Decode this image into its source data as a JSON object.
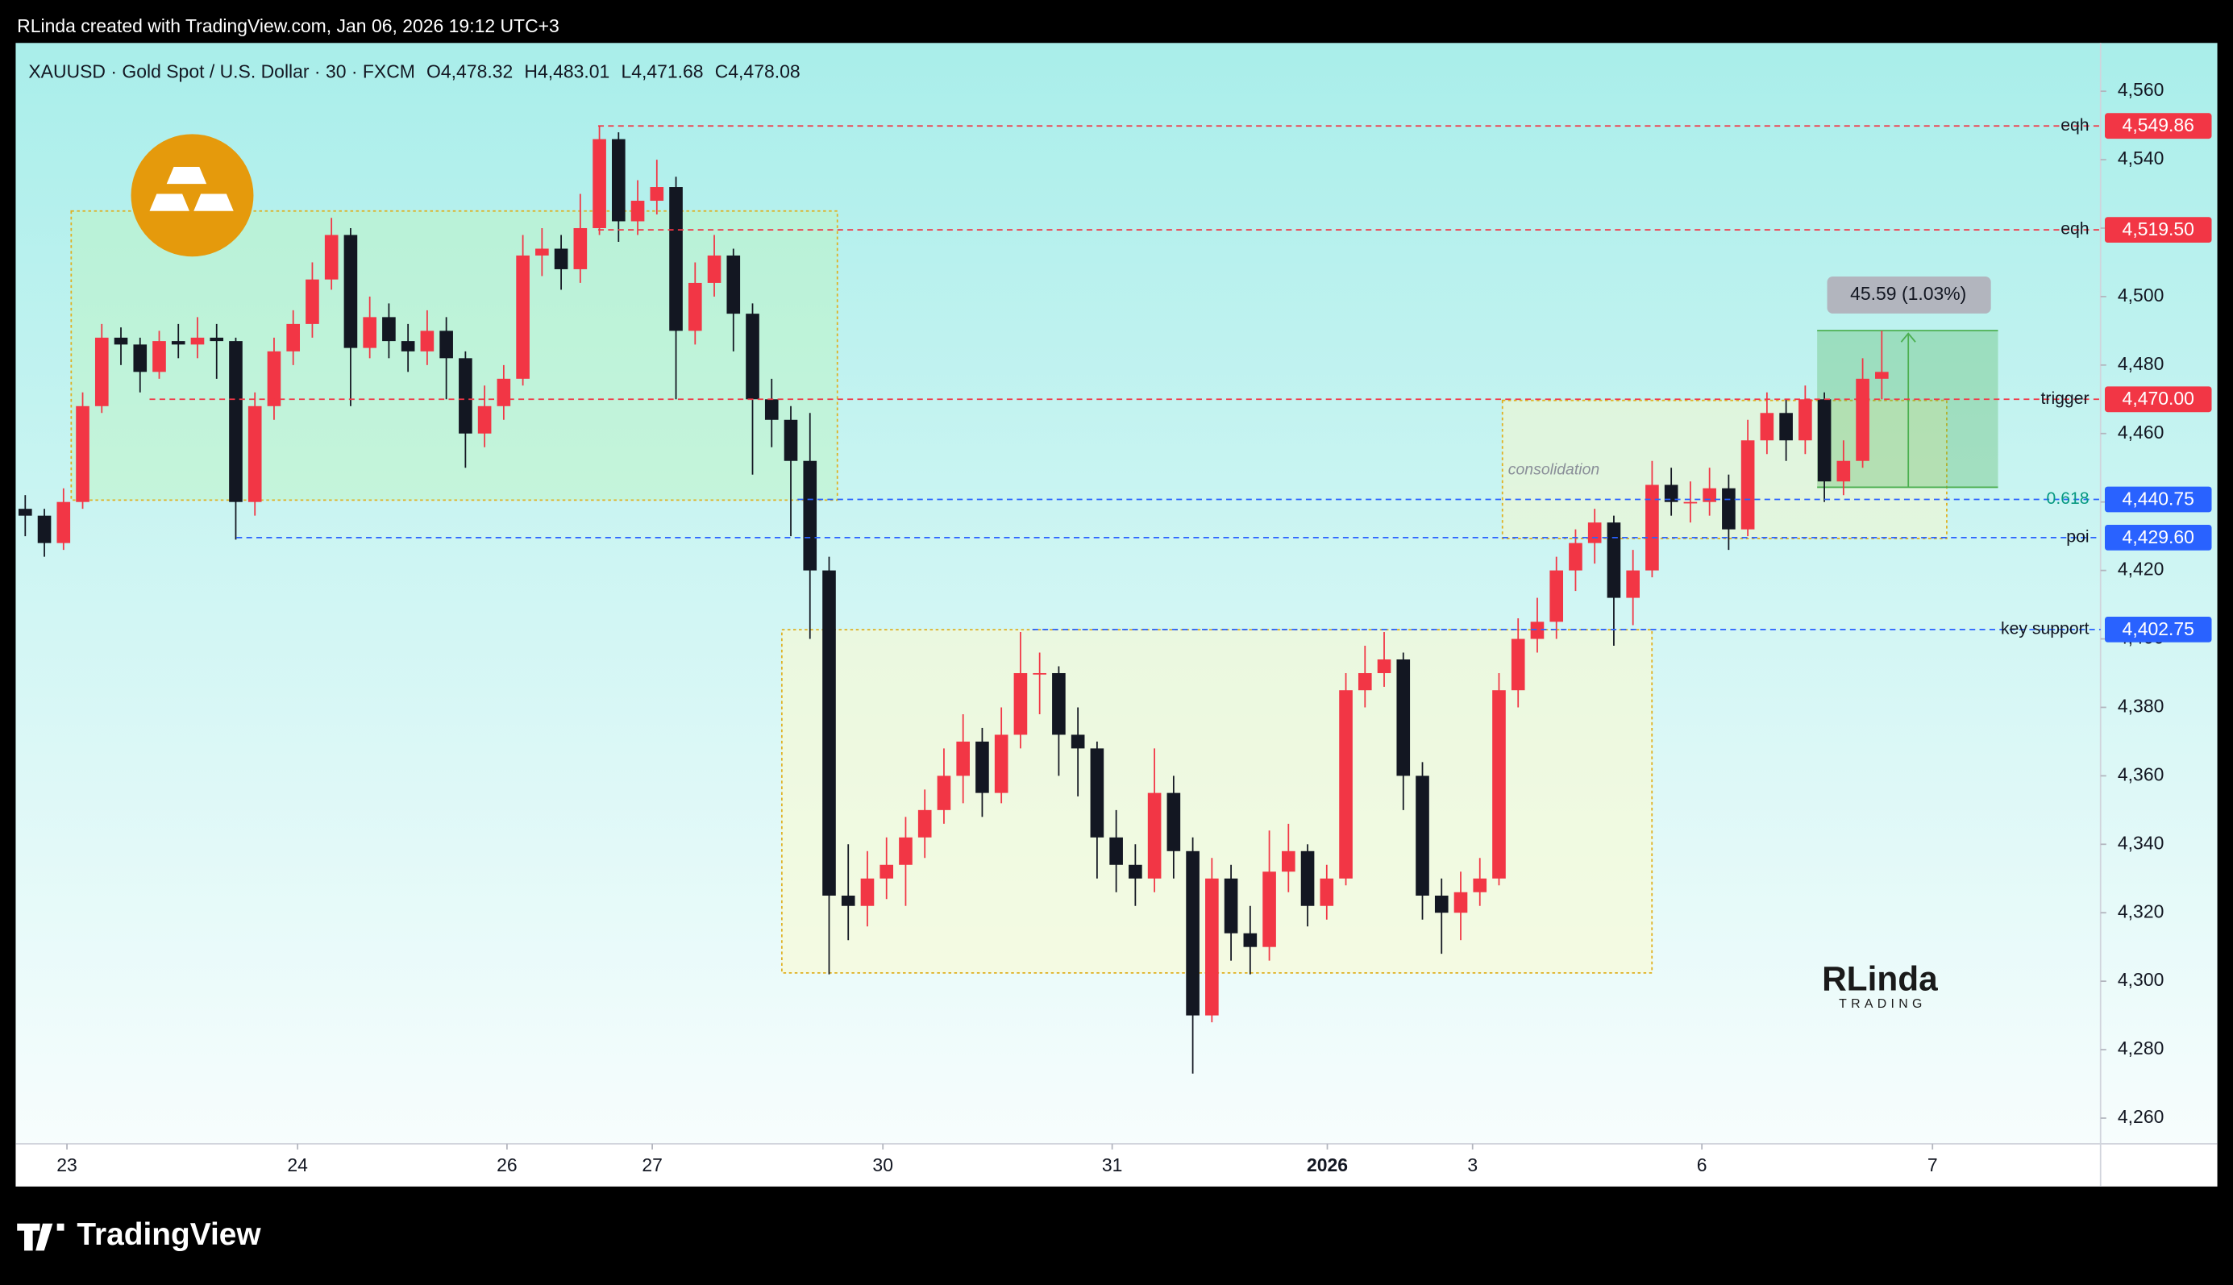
{
  "header": "RLinda created with TradingView.com, Jan 06, 2026 19:12 UTC+3",
  "footer": "TradingView",
  "watermark": {
    "name": "RLinda",
    "sub": "TRADING"
  },
  "chart_data": {
    "type": "candlestick",
    "title": "XAUUSD · Gold Spot / U.S. Dollar · 30 · FXCM",
    "legend_values": [
      "O4,478.32",
      "H4,483.01",
      "L4,471.68",
      "C4,478.08"
    ],
    "up_color": "#f23645",
    "down_color": "#131722",
    "grid": false,
    "open": [
      4438,
      4436,
      4428,
      4440,
      4468,
      4488,
      4486,
      4478,
      4487,
      4486,
      4488,
      4487,
      4440,
      4468,
      4484,
      4492,
      4505,
      4518,
      4485,
      4494,
      4487,
      4484,
      4490,
      4482,
      4460,
      4468,
      4476,
      4512,
      4514,
      4508,
      4520,
      4546,
      4522,
      4528,
      4532,
      4490,
      4504,
      4512,
      4495,
      4470,
      4464,
      4452,
      4420,
      4325,
      4322,
      4330,
      4334,
      4342,
      4350,
      4360,
      4370,
      4355,
      4372,
      4390,
      4390,
      4372,
      4368,
      4342,
      4334,
      4330,
      4355,
      4338,
      4290,
      4330,
      4314,
      4310,
      4332,
      4338,
      4322,
      4330,
      4385,
      4390,
      4394,
      4360,
      4325,
      4320,
      4326,
      4330,
      4385,
      4400,
      4405,
      4420,
      4428,
      4434,
      4412,
      4420,
      4445,
      4440,
      4440,
      4444,
      4432,
      4458,
      4466,
      4458,
      4470,
      4446,
      4452,
      4476
    ],
    "high": [
      4442,
      4438,
      4444,
      4472,
      4492,
      4491,
      4488,
      4490,
      4492,
      4494,
      4492,
      4488,
      4472,
      4488,
      4496,
      4510,
      4523,
      4520,
      4500,
      4498,
      4492,
      4496,
      4494,
      4484,
      4474,
      4480,
      4518,
      4520,
      4518,
      4530,
      4550,
      4548,
      4534,
      4540,
      4535,
      4510,
      4518,
      4514,
      4498,
      4476,
      4468,
      4466,
      4424,
      4340,
      4338,
      4342,
      4348,
      4356,
      4368,
      4378,
      4374,
      4380,
      4402,
      4396,
      4392,
      4380,
      4370,
      4350,
      4340,
      4368,
      4360,
      4342,
      4336,
      4334,
      4322,
      4344,
      4346,
      4340,
      4334,
      4390,
      4398,
      4402,
      4396,
      4364,
      4330,
      4332,
      4336,
      4390,
      4406,
      4412,
      4424,
      4432,
      4438,
      4436,
      4426,
      4452,
      4450,
      4446,
      4450,
      4448,
      4464,
      4472,
      4470,
      4474,
      4472,
      4458,
      4482,
      4490
    ],
    "low": [
      4430,
      4424,
      4426,
      4438,
      4466,
      4480,
      4472,
      4476,
      4482,
      4482,
      4476,
      4429,
      4436,
      4464,
      4480,
      4488,
      4502,
      4468,
      4482,
      4482,
      4478,
      4480,
      4470,
      4450,
      4456,
      4464,
      4474,
      4506,
      4502,
      4504,
      4518,
      4516,
      4518,
      4524,
      4470,
      4486,
      4500,
      4484,
      4448,
      4456,
      4430,
      4400,
      4302,
      4312,
      4316,
      4324,
      4322,
      4336,
      4346,
      4352,
      4348,
      4352,
      4368,
      4378,
      4360,
      4354,
      4330,
      4326,
      4322,
      4326,
      4330,
      4273,
      4288,
      4306,
      4302,
      4306,
      4326,
      4316,
      4318,
      4328,
      4380,
      4386,
      4350,
      4318,
      4308,
      4312,
      4322,
      4328,
      4380,
      4396,
      4400,
      4414,
      4422,
      4398,
      4404,
      4418,
      4436,
      4434,
      4436,
      4426,
      4430,
      4454,
      4452,
      4454,
      4440,
      4442,
      4450,
      4470
    ],
    "close": [
      4436,
      4428,
      4440,
      4468,
      4488,
      4486,
      4478,
      4487,
      4486,
      4488,
      4487,
      4440,
      4468,
      4484,
      4492,
      4505,
      4518,
      4485,
      4494,
      4487,
      4484,
      4490,
      4482,
      4460,
      4468,
      4476,
      4512,
      4514,
      4508,
      4520,
      4546,
      4522,
      4528,
      4532,
      4490,
      4504,
      4512,
      4495,
      4470,
      4464,
      4452,
      4420,
      4325,
      4322,
      4330,
      4334,
      4342,
      4350,
      4360,
      4370,
      4355,
      4372,
      4390,
      4390,
      4372,
      4368,
      4342,
      4334,
      4330,
      4355,
      4338,
      4290,
      4330,
      4314,
      4310,
      4332,
      4338,
      4322,
      4330,
      4385,
      4390,
      4394,
      4360,
      4325,
      4320,
      4326,
      4330,
      4385,
      4400,
      4405,
      4420,
      4428,
      4434,
      4412,
      4420,
      4445,
      4440,
      4440,
      4444,
      4432,
      4458,
      4466,
      4458,
      4470,
      4446,
      4452,
      4476,
      4478
    ],
    "xlim": [
      0,
      108.93
    ],
    "xticks": [
      {
        "value": 2.68,
        "label": "23"
      },
      {
        "value": 14.73,
        "label": "24"
      },
      {
        "value": 25.67,
        "label": "26"
      },
      {
        "value": 33.26,
        "label": "27"
      },
      {
        "value": 45.31,
        "label": "30"
      },
      {
        "value": 57.29,
        "label": "31"
      },
      {
        "value": 68.53,
        "label": "2026",
        "bold": true
      },
      {
        "value": 76.12,
        "label": "3"
      },
      {
        "value": 88.1,
        "label": "6"
      },
      {
        "value": 100.15,
        "label": "7"
      }
    ],
    "ylim": [
      4252.5,
      4574.1
    ],
    "yticks": [
      {
        "value": 4260,
        "label": "4,260"
      },
      {
        "value": 4280,
        "label": "4,280"
      },
      {
        "value": 4300,
        "label": "4,300"
      },
      {
        "value": 4320,
        "label": "4,320"
      },
      {
        "value": 4340,
        "label": "4,340"
      },
      {
        "value": 4360,
        "label": "4,360"
      },
      {
        "value": 4380,
        "label": "4,380"
      },
      {
        "value": 4400,
        "label": "4,400"
      },
      {
        "value": 4420,
        "label": "4,420"
      },
      {
        "value": 4440,
        "label": "4,440"
      },
      {
        "value": 4460,
        "label": "4,460"
      },
      {
        "value": 4480,
        "label": "4,480"
      },
      {
        "value": 4500,
        "label": "4,500"
      },
      {
        "value": 4520,
        "label": "4,520"
      },
      {
        "value": 4540,
        "label": "4,540"
      },
      {
        "value": 4560,
        "label": "4,560"
      }
    ],
    "levels": [
      {
        "label": "eqh",
        "value": 4549.86,
        "value_label": "4,549.86",
        "color": "#f23645"
      },
      {
        "label": "eqh",
        "value": 4519.5,
        "value_label": "4,519.50",
        "color": "#f23645"
      },
      {
        "label": "trigger",
        "value": 4470.0,
        "value_label": "4,470.00",
        "color": "#f23645"
      },
      {
        "label": "0.618",
        "value": 4440.75,
        "value_label": "4,440.75",
        "color": "#2962ff",
        "text_color": "#089981"
      },
      {
        "label": "poi",
        "value": 4429.6,
        "value_label": "4,429.60",
        "color": "#2962ff"
      },
      {
        "label": "key support",
        "value": 4402.75,
        "value_label": "4,402.75",
        "color": "#2962ff"
      }
    ],
    "annotation": "consolidation",
    "measure_label": "45.59 (1.03%)"
  }
}
